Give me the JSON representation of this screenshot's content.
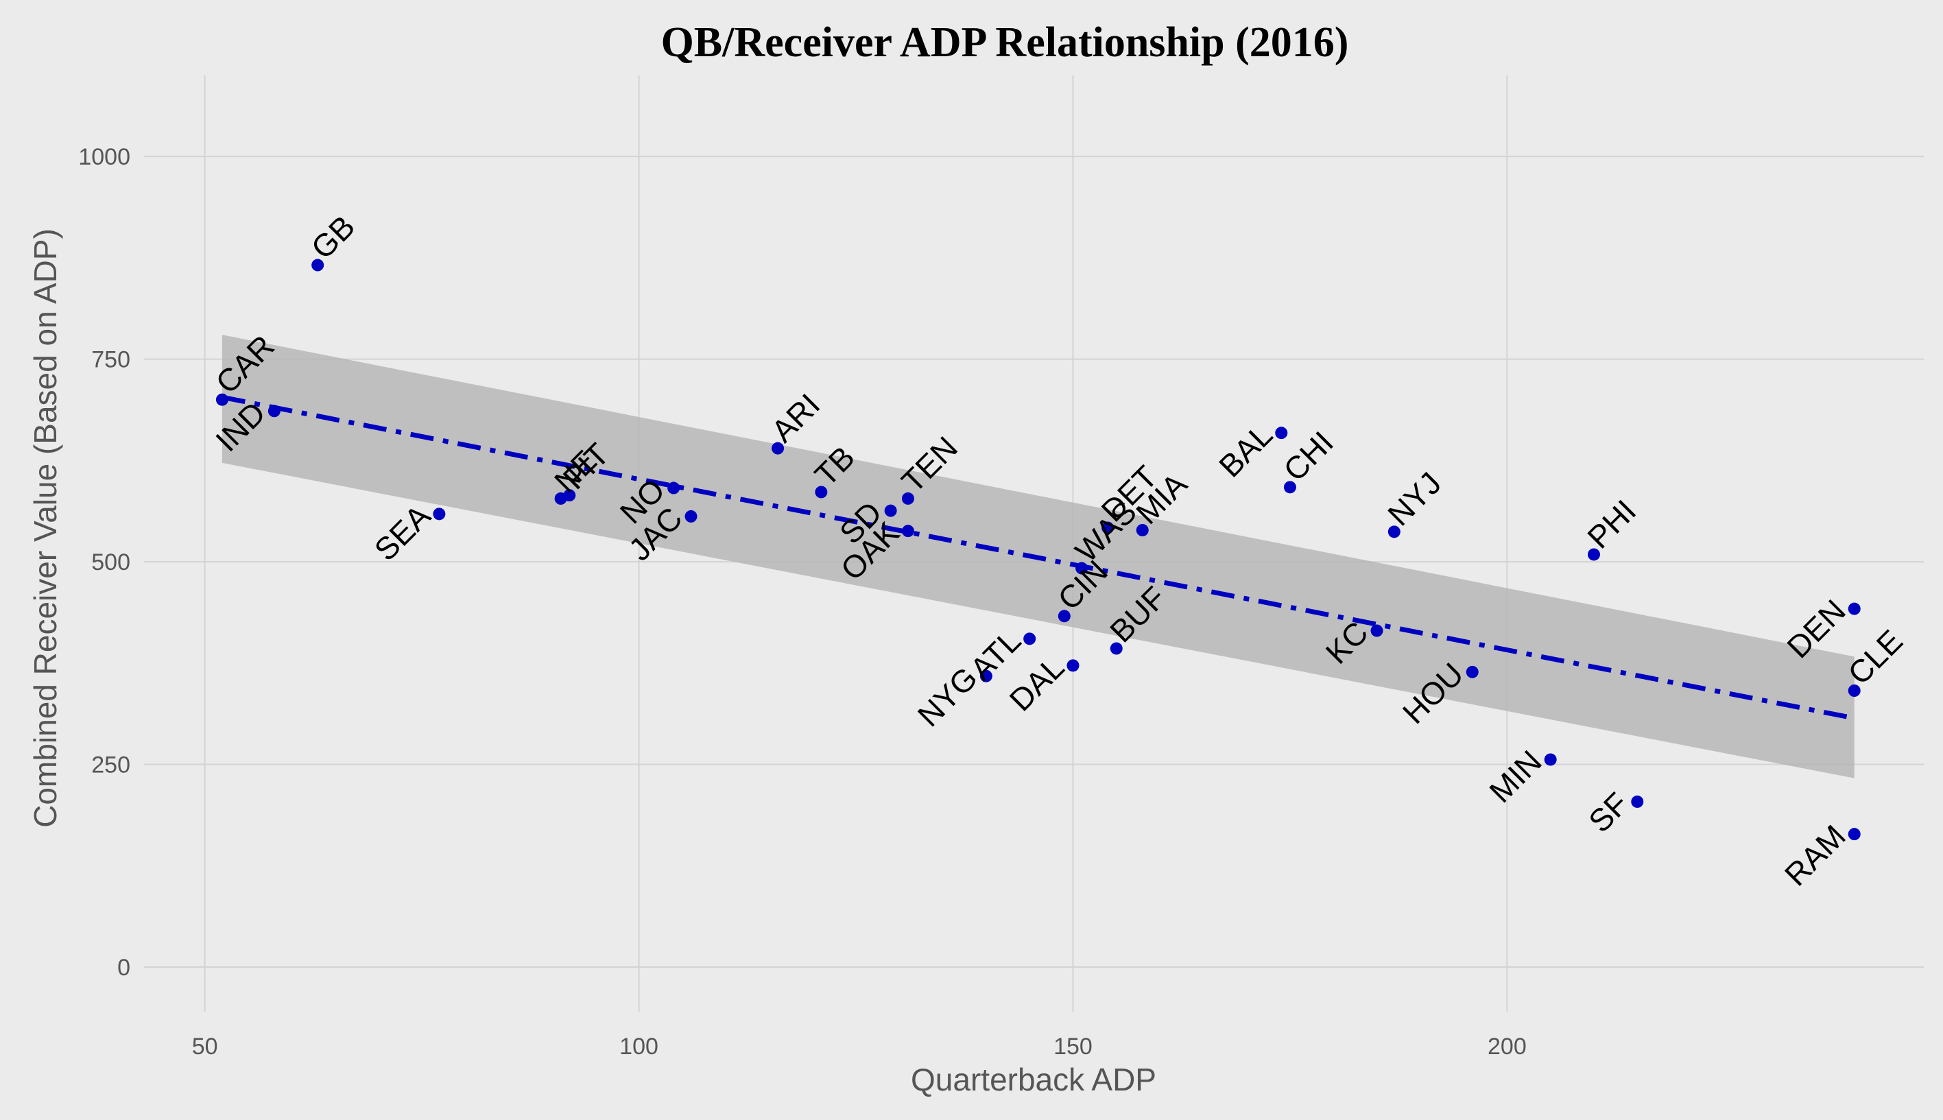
{
  "chart_data": {
    "type": "scatter",
    "title": "QB/Receiver ADP Relationship (2016)",
    "xlabel": "Quarterback ADP",
    "ylabel": "Combined Receiver Value (Based on ADP)",
    "xlim": [
      43,
      248
    ],
    "ylim": [
      -55,
      1100
    ],
    "xticks": [
      50,
      100,
      150,
      200
    ],
    "yticks": [
      0,
      250,
      500,
      750,
      1000
    ],
    "grid": true,
    "colors": {
      "background": "#ebebeb",
      "point": "#0000c0",
      "regression": "#0000c0",
      "band": "#b4b4b4",
      "grid": "#d3d3d3"
    },
    "points": [
      {
        "team": "GB",
        "x": 63,
        "y": 866
      },
      {
        "team": "CAR",
        "x": 52,
        "y": 700
      },
      {
        "team": "IND",
        "x": 58,
        "y": 686
      },
      {
        "team": "SEA",
        "x": 77,
        "y": 559
      },
      {
        "team": "NE",
        "x": 91,
        "y": 578
      },
      {
        "team": "PIT",
        "x": 92,
        "y": 582
      },
      {
        "team": "NO",
        "x": 104,
        "y": 591
      },
      {
        "team": "JAC",
        "x": 106,
        "y": 556
      },
      {
        "team": "ARI",
        "x": 116,
        "y": 640
      },
      {
        "team": "TB",
        "x": 121,
        "y": 586
      },
      {
        "team": "SD",
        "x": 129,
        "y": 563
      },
      {
        "team": "OAK",
        "x": 131,
        "y": 538
      },
      {
        "team": "TEN",
        "x": 131,
        "y": 578
      },
      {
        "team": "NYG",
        "x": 140,
        "y": 359
      },
      {
        "team": "ATL",
        "x": 145,
        "y": 405
      },
      {
        "team": "WAS",
        "x": 151,
        "y": 492
      },
      {
        "team": "CIN",
        "x": 149,
        "y": 433
      },
      {
        "team": "DAL",
        "x": 150,
        "y": 372
      },
      {
        "team": "BUF",
        "x": 155,
        "y": 393
      },
      {
        "team": "DET",
        "x": 154,
        "y": 542
      },
      {
        "team": "MIA",
        "x": 158,
        "y": 539
      },
      {
        "team": "BAL",
        "x": 174,
        "y": 659
      },
      {
        "team": "CHI",
        "x": 175,
        "y": 592
      },
      {
        "team": "NYJ",
        "x": 187,
        "y": 537
      },
      {
        "team": "KC",
        "x": 185,
        "y": 415
      },
      {
        "team": "HOU",
        "x": 196,
        "y": 364
      },
      {
        "team": "MIN",
        "x": 205,
        "y": 256
      },
      {
        "team": "PHI",
        "x": 210,
        "y": 509
      },
      {
        "team": "SF",
        "x": 215,
        "y": 204
      },
      {
        "team": "DEN",
        "x": 240,
        "y": 442
      },
      {
        "team": "CLE",
        "x": 240,
        "y": 341
      },
      {
        "team": "RAM",
        "x": 240,
        "y": 164
      }
    ],
    "regression": {
      "x": [
        52,
        240
      ],
      "y": [
        703,
        307
      ]
    },
    "confidence_band": {
      "x": [
        52,
        240
      ],
      "upper": [
        780,
        383
      ],
      "lower": [
        622,
        233
      ]
    }
  }
}
